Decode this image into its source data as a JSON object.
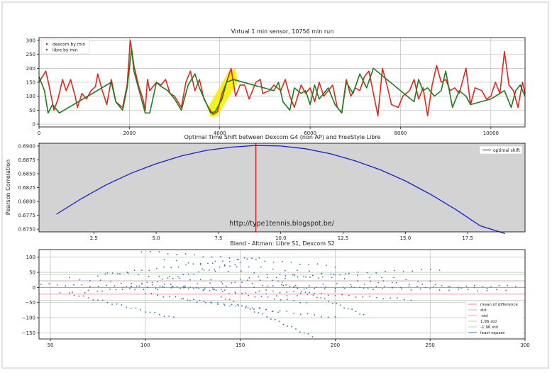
{
  "colors": {
    "dexcom": "#e8251c",
    "libre": "#1b7d1b",
    "curve": "#1020e0",
    "optimal": "#d81515",
    "scatter": "#2a78b8",
    "highlight": "#f2f200",
    "panel_bg": "#d3d3d3",
    "mean": "#f08080",
    "std": "#f0a0b0",
    "std196": "#b8dcb0"
  },
  "chart_data": [
    {
      "type": "line",
      "title": "Virtual 1 min sensor, 10756 min run",
      "xlim": [
        0,
        10756
      ],
      "ylim": [
        -10,
        310
      ],
      "x_ticks": [
        0,
        2000,
        4000,
        6000,
        8000,
        10000
      ],
      "x_tick_labels": [
        "0",
        "2000",
        "4000",
        "6000",
        "8000",
        "10000"
      ],
      "y_ticks": [
        0,
        50,
        100,
        150,
        200,
        250,
        300
      ],
      "y_tick_labels": [
        "0",
        "50",
        "100",
        "150",
        "200",
        "250",
        "300"
      ],
      "grid": true,
      "legend_position": "top-left",
      "legend": [
        "dexcom by min",
        "libre by min"
      ],
      "highlight_range": [
        3800,
        4350
      ],
      "series": [
        {
          "name": "dexcom by min",
          "x": [
            0,
            150,
            220,
            330,
            420,
            520,
            600,
            700,
            800,
            850,
            950,
            1050,
            1150,
            1250,
            1300,
            1400,
            1500,
            1600,
            1700,
            1850,
            1950,
            2020,
            2100,
            2200,
            2300,
            2350,
            2400,
            2450,
            2600,
            2700,
            2800,
            2900,
            3000,
            3150,
            3250,
            3350,
            3450,
            3550,
            3650,
            3750,
            3850,
            3950,
            4050,
            4150,
            4250,
            4350,
            4450,
            4550,
            4650,
            4800,
            4900,
            4950,
            5100,
            5200,
            5350,
            5450,
            5550,
            5650,
            5800,
            5900,
            6000,
            6100,
            6200,
            6300,
            6400,
            6500,
            6600,
            6700,
            6800,
            6900,
            7000,
            7100,
            7200,
            7300,
            7400,
            7500,
            7600,
            7700,
            7800,
            7950,
            8050,
            8200,
            8300,
            8400,
            8500,
            8600,
            8700,
            8800,
            8900,
            9000,
            9100,
            9200,
            9300,
            9450,
            9550,
            9650,
            9800,
            9900,
            10000,
            10100,
            10200,
            10300,
            10400,
            10500,
            10600,
            10700,
            10756
          ],
          "y": [
            150,
            190,
            140,
            50,
            90,
            160,
            120,
            160,
            100,
            60,
            110,
            90,
            120,
            135,
            180,
            120,
            70,
            160,
            80,
            60,
            140,
            300,
            210,
            140,
            90,
            50,
            160,
            120,
            150,
            140,
            160,
            110,
            100,
            60,
            150,
            190,
            120,
            160,
            90,
            60,
            35,
            45,
            110,
            150,
            200,
            100,
            140,
            140,
            90,
            150,
            160,
            110,
            120,
            140,
            120,
            160,
            100,
            60,
            140,
            110,
            130,
            80,
            150,
            100,
            120,
            140,
            60,
            40,
            160,
            100,
            130,
            120,
            170,
            190,
            110,
            30,
            200,
            140,
            70,
            60,
            100,
            120,
            160,
            90,
            130,
            30,
            140,
            210,
            150,
            160,
            120,
            130,
            110,
            200,
            70,
            130,
            120,
            90,
            100,
            150,
            110,
            260,
            140,
            120,
            60,
            150,
            110
          ]
        },
        {
          "name": "libre by min",
          "x": [
            0,
            120,
            200,
            300,
            450,
            1600,
            1700,
            1850,
            1950,
            2050,
            2100,
            2200,
            2350,
            2450,
            2600,
            2700,
            2850,
            3000,
            3150,
            3300,
            3450,
            3550,
            3700,
            3800,
            3900,
            4050,
            4150,
            4300,
            5200,
            5300,
            5400,
            5550,
            5650,
            5800,
            5900,
            6000,
            6100,
            6200,
            6300,
            6400,
            6550,
            6700,
            6800,
            6950,
            7100,
            7250,
            7400,
            8300,
            8400,
            8500,
            8600,
            8750,
            8900,
            9000,
            9150,
            9300,
            9450,
            9550,
            10000,
            10300,
            10450,
            10550,
            10650,
            10756
          ],
          "y": [
            170,
            120,
            40,
            70,
            40,
            150,
            80,
            50,
            130,
            270,
            190,
            130,
            40,
            40,
            150,
            135,
            120,
            90,
            50,
            140,
            180,
            130,
            75,
            40,
            45,
            90,
            150,
            160,
            120,
            150,
            80,
            50,
            130,
            110,
            120,
            70,
            140,
            90,
            110,
            130,
            70,
            40,
            150,
            110,
            180,
            130,
            200,
            80,
            160,
            120,
            130,
            100,
            120,
            190,
            60,
            120,
            100,
            70,
            90,
            120,
            60,
            120,
            140,
            100
          ]
        }
      ]
    },
    {
      "type": "line",
      "title": "Optimal Time Shift between Dexcom G4 (non AP) and FreeStyle Libre",
      "ylabel": "Pearson Correlation",
      "xlim": [
        0.3,
        19.8
      ],
      "ylim": [
        0.6745,
        0.6905
      ],
      "x_ticks": [
        2.5,
        5.0,
        7.5,
        10.0,
        12.5,
        15.0,
        17.5
      ],
      "x_tick_labels": [
        "2.5",
        "5.0",
        "7.5",
        "10.0",
        "12.5",
        "15.0",
        "17.5"
      ],
      "y_ticks": [
        0.675,
        0.6775,
        0.68,
        0.6825,
        0.685,
        0.6875,
        0.69
      ],
      "y_tick_labels": [
        "0.6750",
        "0.6775",
        "0.6800",
        "0.6825",
        "0.6850",
        "0.6875",
        "0.6900"
      ],
      "grid": false,
      "legend_position": "top-right",
      "legend": [
        "optimal shift"
      ],
      "optimal_shift": 9,
      "annotation": "http://type1tennis.blogspot.be/",
      "series": [
        {
          "name": "correlation",
          "x": [
            1,
            2,
            3,
            4,
            5,
            6,
            7,
            8,
            9,
            10,
            11,
            12,
            13,
            14,
            15,
            16,
            17,
            18,
            19
          ],
          "y": [
            0.6777,
            0.6805,
            0.683,
            0.6851,
            0.6868,
            0.6882,
            0.6892,
            0.6898,
            0.6901,
            0.69,
            0.6895,
            0.6886,
            0.6873,
            0.6857,
            0.6837,
            0.6813,
            0.6786,
            0.6756,
            0.6742
          ]
        }
      ]
    },
    {
      "type": "scatter",
      "title": "Bland - Altman: Libre S1, Dexcom S2",
      "xlim": [
        44,
        300
      ],
      "ylim": [
        -170,
        125
      ],
      "x_ticks": [
        50,
        100,
        150,
        200,
        250,
        300
      ],
      "x_tick_labels": [
        "50",
        "100",
        "150",
        "200",
        "250",
        "300"
      ],
      "y_ticks": [
        -150,
        -100,
        -50,
        0,
        50,
        100
      ],
      "y_tick_labels": [
        "−150",
        "−100",
        "−50",
        "0",
        "50",
        "100"
      ],
      "grid": true,
      "legend_position": "bottom-right",
      "legend": [
        "mean of difference",
        "std",
        "-std",
        "1.96 std",
        "-1.96 std",
        "least square"
      ],
      "reference_lines": {
        "mean": 0,
        "std": 22,
        "minus_std": -22,
        "std_196": 43,
        "minus_std_196": -43
      },
      "trails": [
        {
          "x": [
            45,
            140
          ],
          "y": [
            10,
            -5
          ]
        },
        {
          "x": [
            55,
            200
          ],
          "y": [
            -20,
            40
          ]
        },
        {
          "x": [
            60,
            180
          ],
          "y": [
            30,
            -30
          ]
        },
        {
          "x": [
            70,
            230
          ],
          "y": [
            -10,
            15
          ]
        },
        {
          "x": [
            80,
            200
          ],
          "y": [
            50,
            -10
          ]
        },
        {
          "x": [
            98,
            200
          ],
          "y": [
            120,
            70
          ]
        },
        {
          "x": [
            100,
            170
          ],
          "y": [
            -20,
            -80
          ]
        },
        {
          "x": [
            110,
            250
          ],
          "y": [
            90,
            20
          ]
        },
        {
          "x": [
            120,
            200
          ],
          "y": [
            -40,
            -100
          ]
        },
        {
          "x": [
            130,
            280
          ],
          "y": [
            60,
            -5
          ]
        },
        {
          "x": [
            140,
            188
          ],
          "y": [
            -30,
            -162
          ]
        },
        {
          "x": [
            150,
            255
          ],
          "y": [
            30,
            60
          ]
        },
        {
          "x": [
            160,
            240
          ],
          "y": [
            -10,
            -40
          ]
        },
        {
          "x": [
            170,
            215
          ],
          "y": [
            20,
            -90
          ]
        },
        {
          "x": [
            90,
            150
          ],
          "y": [
            0,
            80
          ]
        },
        {
          "x": [
            60,
            115
          ],
          "y": [
            -20,
            -100
          ]
        },
        {
          "x": [
            180,
            290
          ],
          "y": [
            0,
            -10
          ]
        },
        {
          "x": [
            200,
            295
          ],
          "y": [
            0,
            5
          ]
        },
        {
          "x": [
            75,
            160
          ],
          "y": [
            40,
            100
          ]
        },
        {
          "x": [
            110,
            185
          ],
          "y": [
            10,
            -50
          ]
        }
      ]
    }
  ]
}
